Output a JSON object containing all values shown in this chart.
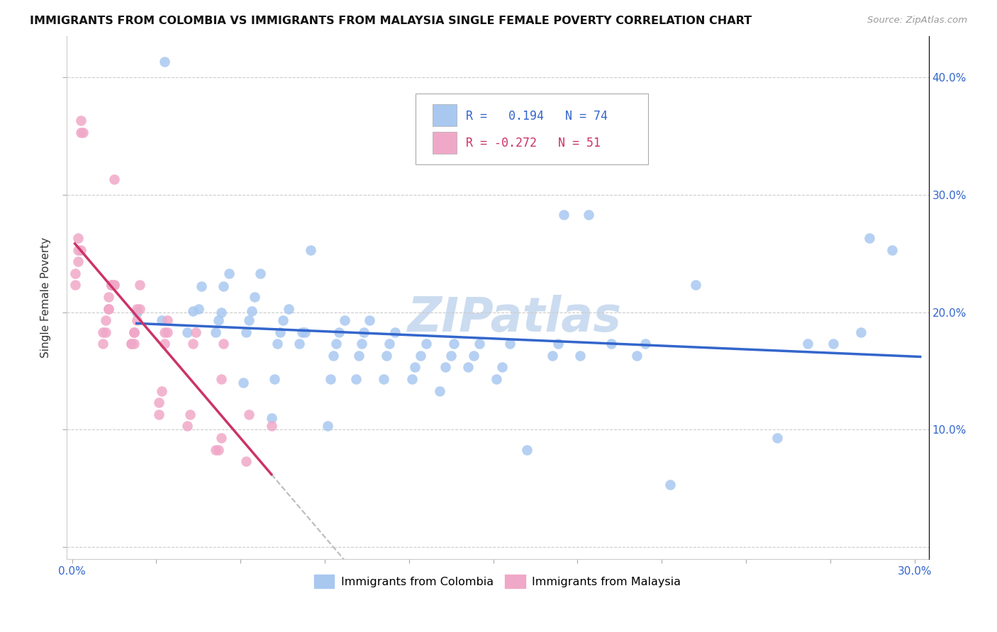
{
  "title": "IMMIGRANTS FROM COLOMBIA VS IMMIGRANTS FROM MALAYSIA SINGLE FEMALE POVERTY CORRELATION CHART",
  "source": "Source: ZipAtlas.com",
  "ylabel": "Single Female Poverty",
  "yticks": [
    0.0,
    0.1,
    0.2,
    0.3,
    0.4
  ],
  "ytick_labels": [
    "",
    "10.0%",
    "20.0%",
    "30.0%",
    "40.0%"
  ],
  "xlim": [
    -0.002,
    0.305
  ],
  "ylim": [
    -0.01,
    0.435
  ],
  "r_colombia": 0.194,
  "n_colombia": 74,
  "r_malaysia": -0.272,
  "n_malaysia": 51,
  "color_colombia": "#a8c8f0",
  "color_malaysia": "#f0a8c8",
  "line_color_colombia": "#3366cc",
  "line_color_malaysia": "#cc3366",
  "watermark": "ZIPatlas",
  "watermark_color": "#ccdcf0",
  "colombia_x": [
    0.023,
    0.032,
    0.033,
    0.041,
    0.043,
    0.045,
    0.046,
    0.051,
    0.052,
    0.053,
    0.054,
    0.056,
    0.061,
    0.062,
    0.063,
    0.064,
    0.065,
    0.067,
    0.071,
    0.072,
    0.073,
    0.074,
    0.075,
    0.077,
    0.081,
    0.082,
    0.083,
    0.085,
    0.091,
    0.092,
    0.093,
    0.094,
    0.095,
    0.097,
    0.101,
    0.102,
    0.103,
    0.104,
    0.106,
    0.111,
    0.112,
    0.113,
    0.115,
    0.121,
    0.122,
    0.124,
    0.126,
    0.131,
    0.133,
    0.135,
    0.136,
    0.141,
    0.143,
    0.145,
    0.151,
    0.153,
    0.156,
    0.162,
    0.171,
    0.173,
    0.175,
    0.181,
    0.184,
    0.192,
    0.201,
    0.204,
    0.213,
    0.222,
    0.251,
    0.262,
    0.271,
    0.281,
    0.284,
    0.292
  ],
  "colombia_y": [
    0.2,
    0.193,
    0.413,
    0.183,
    0.201,
    0.203,
    0.222,
    0.183,
    0.193,
    0.2,
    0.222,
    0.233,
    0.14,
    0.183,
    0.193,
    0.201,
    0.213,
    0.233,
    0.11,
    0.143,
    0.173,
    0.183,
    0.193,
    0.203,
    0.173,
    0.183,
    0.183,
    0.253,
    0.103,
    0.143,
    0.163,
    0.173,
    0.183,
    0.193,
    0.143,
    0.163,
    0.173,
    0.183,
    0.193,
    0.143,
    0.163,
    0.173,
    0.183,
    0.143,
    0.153,
    0.163,
    0.173,
    0.133,
    0.153,
    0.163,
    0.173,
    0.153,
    0.163,
    0.173,
    0.143,
    0.153,
    0.173,
    0.083,
    0.163,
    0.173,
    0.283,
    0.163,
    0.283,
    0.173,
    0.163,
    0.173,
    0.053,
    0.223,
    0.093,
    0.173,
    0.173,
    0.183,
    0.263,
    0.253
  ],
  "malaysia_x": [
    0.001,
    0.001,
    0.002,
    0.002,
    0.002,
    0.003,
    0.003,
    0.003,
    0.004,
    0.011,
    0.011,
    0.012,
    0.012,
    0.013,
    0.013,
    0.013,
    0.014,
    0.014,
    0.014,
    0.015,
    0.015,
    0.015,
    0.021,
    0.021,
    0.022,
    0.022,
    0.022,
    0.022,
    0.023,
    0.023,
    0.024,
    0.024,
    0.031,
    0.031,
    0.032,
    0.033,
    0.033,
    0.034,
    0.034,
    0.041,
    0.042,
    0.043,
    0.044,
    0.051,
    0.052,
    0.053,
    0.053,
    0.054,
    0.062,
    0.063,
    0.071
  ],
  "malaysia_y": [
    0.223,
    0.233,
    0.243,
    0.253,
    0.263,
    0.353,
    0.363,
    0.253,
    0.353,
    0.173,
    0.183,
    0.183,
    0.193,
    0.203,
    0.203,
    0.213,
    0.223,
    0.223,
    0.223,
    0.223,
    0.313,
    0.223,
    0.173,
    0.173,
    0.173,
    0.183,
    0.183,
    0.183,
    0.193,
    0.203,
    0.203,
    0.223,
    0.113,
    0.123,
    0.133,
    0.173,
    0.183,
    0.183,
    0.193,
    0.103,
    0.113,
    0.173,
    0.183,
    0.083,
    0.083,
    0.093,
    0.143,
    0.173,
    0.073,
    0.113,
    0.103
  ]
}
